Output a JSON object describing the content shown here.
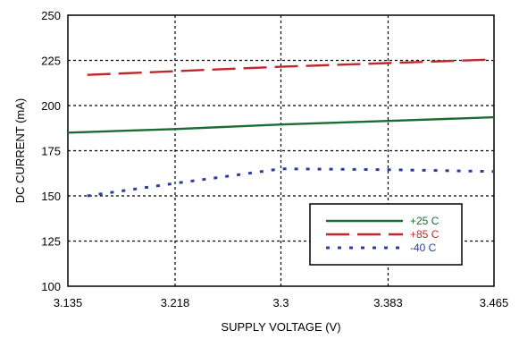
{
  "chart_data": {
    "type": "line",
    "title": "",
    "xlabel": "SUPPLY VOLTAGE (V)",
    "ylabel": "DC CURRENT (mA)",
    "xlim": [
      3.135,
      3.465
    ],
    "ylim": [
      100,
      250
    ],
    "x_ticks": [
      "3.135",
      "3.218",
      "3.3",
      "3.383",
      "3.465"
    ],
    "y_ticks": [
      "100",
      "125",
      "150",
      "175",
      "200",
      "225",
      "250"
    ],
    "grid": true,
    "legend_position": "bottom-right",
    "series": [
      {
        "name": "+25 C",
        "color": "#1b6b34",
        "style": "solid",
        "x": [
          3.135,
          3.218,
          3.3,
          3.383,
          3.465
        ],
        "values": [
          185,
          187,
          189.5,
          191.5,
          193.5
        ]
      },
      {
        "name": "+85 C",
        "color": "#c0282d",
        "style": "dashed",
        "x": [
          3.15,
          3.218,
          3.3,
          3.383,
          3.465
        ],
        "values": [
          217,
          219,
          221.5,
          223.5,
          225.5
        ]
      },
      {
        "name": "-40 C",
        "color": "#2b3f9a",
        "style": "dotted",
        "x": [
          3.15,
          3.218,
          3.26,
          3.3,
          3.383,
          3.465
        ],
        "values": [
          150,
          157,
          161,
          165,
          164.5,
          163.5
        ]
      }
    ]
  }
}
